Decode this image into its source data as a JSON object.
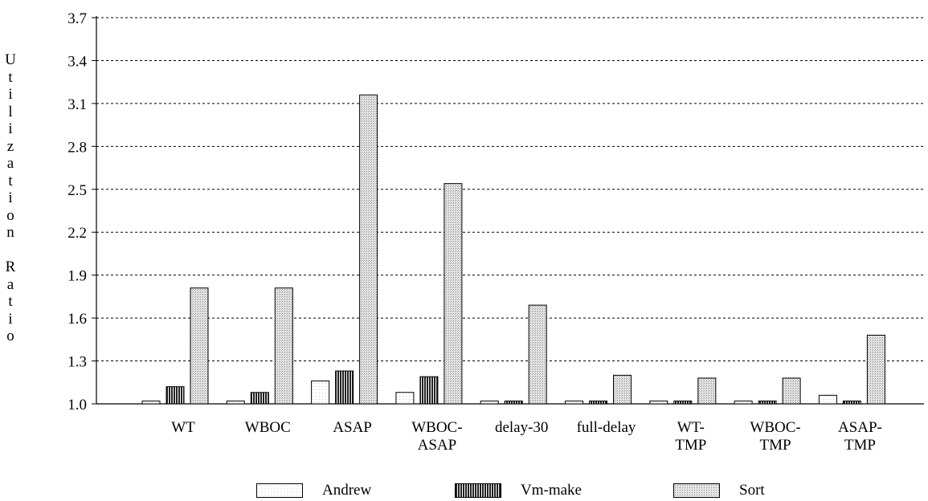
{
  "chart_data": {
    "type": "bar",
    "title": "",
    "xlabel": "",
    "ylabel": "Utilization Ratio",
    "ylim": [
      1.0,
      3.7
    ],
    "yticks": [
      "1.0",
      "1.3",
      "1.6",
      "1.9",
      "2.2",
      "2.5",
      "2.8",
      "3.1",
      "3.4",
      "3.7"
    ],
    "grid": true,
    "legend_position": "bottom",
    "categories": [
      [
        "WT"
      ],
      [
        "WBOC"
      ],
      [
        "ASAP"
      ],
      [
        "WBOC-",
        "ASAP"
      ],
      [
        "delay-30"
      ],
      [
        "full-delay"
      ],
      [
        "WT-",
        "TMP"
      ],
      [
        "WBOC-",
        "TMP"
      ],
      [
        "ASAP-",
        "TMP"
      ]
    ],
    "series": [
      {
        "name": "Andrew",
        "fill": "light-stipple",
        "values": [
          1.02,
          1.02,
          1.16,
          1.08,
          1.02,
          1.02,
          1.02,
          1.02,
          1.06
        ]
      },
      {
        "name": "Vm-make",
        "fill": "dark-vertical-hatch",
        "values": [
          1.12,
          1.08,
          1.23,
          1.19,
          1.02,
          1.02,
          1.02,
          1.02,
          1.02
        ]
      },
      {
        "name": "Sort",
        "fill": "medium-stipple",
        "values": [
          1.81,
          1.81,
          3.16,
          2.54,
          1.69,
          1.2,
          1.18,
          1.18,
          1.48
        ]
      }
    ]
  }
}
